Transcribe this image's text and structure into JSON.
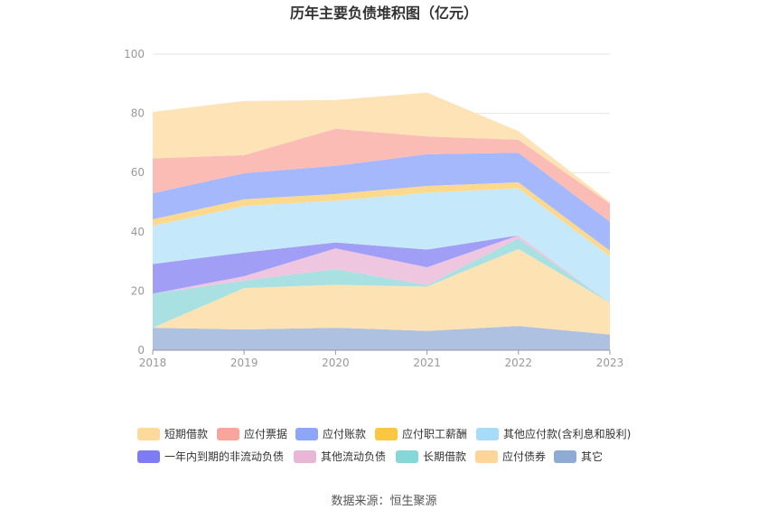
{
  "chart_data": {
    "type": "area",
    "stacked": true,
    "title": "历年主要负债堆积图（亿元）",
    "source": "数据来源：恒生聚源",
    "categories": [
      "2018",
      "2019",
      "2020",
      "2021",
      "2022",
      "2023"
    ],
    "ylim": [
      0,
      100
    ],
    "yticks": [
      "0",
      "20",
      "40",
      "60",
      "80",
      "100"
    ],
    "grid": true,
    "legend_position": "bottom",
    "series": [
      {
        "name": "其它",
        "color": "#aec1e0",
        "values": [
          7.6,
          7.0,
          7.6,
          6.5,
          8.2,
          5.3
        ]
      },
      {
        "name": "应付债券",
        "color": "#fde2b4",
        "values": [
          0,
          14,
          14.5,
          15,
          26,
          10.7
        ]
      },
      {
        "name": "长期借款",
        "color": "#a9e1e2",
        "values": [
          11.5,
          2.5,
          5.3,
          0.5,
          3.6,
          0
        ]
      },
      {
        "name": "其他流动负债",
        "color": "#eec6df",
        "values": [
          0,
          1.5,
          7,
          6,
          1,
          0
        ]
      },
      {
        "name": "一年内到期的非流动负债",
        "color": "#a09ef5",
        "values": [
          10,
          8,
          2,
          6,
          0,
          0
        ]
      },
      {
        "name": "其他应付款(含利息和股利)",
        "color": "#c6e8fb",
        "values": [
          12.9,
          15.7,
          14.1,
          19.2,
          15.9,
          15.7
        ]
      },
      {
        "name": "应付职工薪酬",
        "color": "#fdd98d",
        "values": [
          2.2,
          2.3,
          2.3,
          2.3,
          2.0,
          1.9
        ]
      },
      {
        "name": "应付账款",
        "color": "#a6b8fc",
        "values": [
          8.8,
          8.8,
          9.5,
          10.7,
          10.0,
          9.8
        ]
      },
      {
        "name": "应付票据",
        "color": "#fbbcb6",
        "values": [
          11.8,
          6.1,
          12.5,
          6.0,
          4.4,
          6.1
        ]
      },
      {
        "name": "短期借款",
        "color": "#fde3b6",
        "values": [
          15.7,
          18.3,
          9.7,
          14.8,
          2.9,
          0.5
        ]
      }
    ],
    "legend": [
      {
        "name": "短期借款",
        "color": "#fdd99b"
      },
      {
        "name": "应付票据",
        "color": "#f9a59b"
      },
      {
        "name": "应付账款",
        "color": "#8ea6f8"
      },
      {
        "name": "应付职工薪酬",
        "color": "#fbc640"
      },
      {
        "name": "其他应付款(含利息和股利)",
        "color": "#a6dcf8"
      },
      {
        "name": "一年内到期的非流动负债",
        "color": "#7e7cf3"
      },
      {
        "name": "其他流动负债",
        "color": "#e9b7d6"
      },
      {
        "name": "长期借款",
        "color": "#86d7d8"
      },
      {
        "name": "应付债券",
        "color": "#fdd49a"
      },
      {
        "name": "其它",
        "color": "#8eabd6"
      }
    ]
  }
}
